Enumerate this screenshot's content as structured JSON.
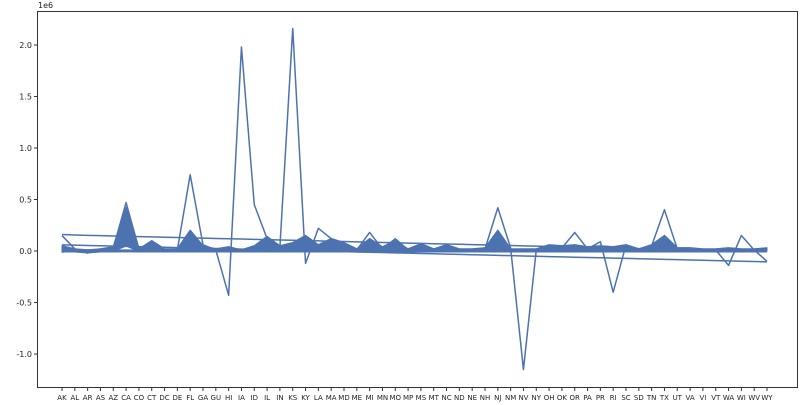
{
  "chart_data": {
    "type": "line",
    "title": "",
    "xlabel": "",
    "ylabel": "",
    "y_offset_label": "1e6",
    "y_multiplier": 1000000,
    "ylim": [
      -1.32,
      2.32
    ],
    "yticks": [
      -1.0,
      -0.5,
      0.0,
      0.5,
      1.0,
      1.5,
      2.0
    ],
    "ytick_labels": [
      "-1.0",
      "-0.5",
      "0.0",
      "0.5",
      "1.0",
      "1.5",
      "2.0"
    ],
    "grid": false,
    "legend": "none",
    "series_color": "#4c72b0",
    "categories": [
      "AK",
      "AL",
      "AR",
      "AS",
      "AZ",
      "CA",
      "CO",
      "CT",
      "DC",
      "DE",
      "FL",
      "GA",
      "GU",
      "HI",
      "IA",
      "ID",
      "IL",
      "IN",
      "KS",
      "KY",
      "LA",
      "MA",
      "MD",
      "ME",
      "MI",
      "MN",
      "MO",
      "MP",
      "MS",
      "MT",
      "NC",
      "ND",
      "NE",
      "NH",
      "NJ",
      "NM",
      "NV",
      "NY",
      "OH",
      "OK",
      "OR",
      "PA",
      "PR",
      "RI",
      "SC",
      "SD",
      "TN",
      "TX",
      "UT",
      "VA",
      "VI",
      "VT",
      "WA",
      "WI",
      "WV",
      "WY"
    ],
    "series": [
      {
        "values": [
          0.15,
          0.02,
          0.01,
          0.02,
          0.03,
          0.47,
          0.02,
          0.09,
          0.01,
          0.01,
          0.74,
          0.06,
          0.01,
          -0.43,
          1.98,
          0.45,
          0.12,
          0.04,
          2.16,
          -0.12,
          0.22,
          0.12,
          0.05,
          0.01,
          0.18,
          0.02,
          0.12,
          0.01,
          0.07,
          0.01,
          0.03,
          0.01,
          0.01,
          0.02,
          0.42,
          0.03,
          -1.15,
          0.01,
          0.05,
          0.03,
          0.18,
          0.02,
          0.09,
          -0.4,
          0.06,
          0.01,
          0.05,
          0.4,
          0.02,
          0.01,
          0.01,
          0.01,
          -0.14,
          0.15,
          0.01,
          -0.1
        ]
      },
      {
        "values": [
          0.05,
          0.02,
          -0.02,
          0.02,
          0.04,
          0.42,
          0.02,
          0.1,
          0.02,
          0.02,
          0.2,
          0.05,
          0.02,
          0.04,
          0.01,
          0.05,
          0.14,
          0.05,
          0.08,
          0.15,
          0.06,
          0.12,
          0.08,
          0.02,
          0.12,
          0.04,
          0.1,
          0.02,
          0.07,
          0.02,
          0.06,
          0.02,
          0.02,
          0.03,
          0.2,
          0.02,
          0.02,
          0.02,
          0.06,
          0.05,
          0.06,
          0.04,
          0.05,
          0.04,
          0.06,
          0.02,
          0.06,
          0.15,
          0.03,
          0.03,
          0.02,
          0.02,
          0.03,
          0.02,
          0.02,
          0.03
        ]
      },
      {
        "values": [
          0.02,
          0.01,
          0.01,
          0.01,
          0.02,
          0.3,
          0.01,
          0.06,
          0.01,
          0.01,
          0.15,
          0.03,
          0.01,
          0.01,
          0.01,
          0.03,
          0.09,
          0.03,
          0.05,
          0.09,
          0.04,
          0.08,
          0.05,
          0.01,
          0.08,
          0.02,
          0.07,
          0.01,
          0.05,
          0.01,
          0.04,
          0.01,
          0.01,
          0.02,
          0.14,
          0.01,
          0.01,
          0.01,
          0.04,
          0.03,
          0.04,
          0.03,
          0.03,
          0.02,
          0.04,
          0.01,
          0.04,
          0.1,
          0.02,
          0.02,
          0.01,
          0.01,
          0.02,
          0.01,
          0.01,
          0.02
        ]
      },
      {
        "values": [
          -0.01,
          0.0,
          0.0,
          0.0,
          0.0,
          0.05,
          0.0,
          0.01,
          0.0,
          0.0,
          0.02,
          0.0,
          0.0,
          0.0,
          0.0,
          0.0,
          0.01,
          0.0,
          0.01,
          0.01,
          0.0,
          0.01,
          0.01,
          0.0,
          0.01,
          0.0,
          0.01,
          0.0,
          0.0,
          0.0,
          0.0,
          0.0,
          0.0,
          0.0,
          0.02,
          0.0,
          0.0,
          0.0,
          0.0,
          0.0,
          0.0,
          0.0,
          0.0,
          0.0,
          0.0,
          0.0,
          0.0,
          0.01,
          0.0,
          0.0,
          0.0,
          0.0,
          0.0,
          0.0,
          0.0,
          0.0
        ]
      },
      {
        "values": [
          0.16,
          0.155,
          0.152,
          0.149,
          0.146,
          0.143,
          0.14,
          0.137,
          0.134,
          0.131,
          0.128,
          0.125,
          0.122,
          0.119,
          0.116,
          0.113,
          0.11,
          0.107,
          0.104,
          0.101,
          0.098,
          0.095,
          0.092,
          0.089,
          0.086,
          0.083,
          0.08,
          0.077,
          0.074,
          0.071,
          0.068,
          0.065,
          0.062,
          0.059,
          0.056,
          0.053,
          0.05,
          0.047,
          0.044,
          0.041,
          0.038,
          0.035,
          0.032,
          0.029,
          0.026,
          0.023,
          0.02,
          0.017,
          0.014,
          0.011,
          0.008,
          0.005,
          0.002,
          -0.001,
          -0.004,
          -0.007
        ]
      },
      {
        "values": [
          0.06,
          0.057,
          0.054,
          0.051,
          0.048,
          0.045,
          0.042,
          0.039,
          0.036,
          0.033,
          0.03,
          0.027,
          0.024,
          0.021,
          0.018,
          0.015,
          0.012,
          0.009,
          0.006,
          0.003,
          0.0,
          -0.003,
          -0.006,
          -0.009,
          -0.012,
          -0.015,
          -0.018,
          -0.021,
          -0.024,
          -0.027,
          -0.03,
          -0.033,
          -0.036,
          -0.039,
          -0.042,
          -0.045,
          -0.048,
          -0.051,
          -0.054,
          -0.057,
          -0.06,
          -0.063,
          -0.066,
          -0.069,
          -0.072,
          -0.075,
          -0.078,
          -0.081,
          -0.084,
          -0.087,
          -0.09,
          -0.093,
          -0.096,
          -0.099,
          -0.102,
          -0.105
        ]
      },
      {
        "values": [
          0.0,
          0.0,
          0.0,
          0.0,
          0.0,
          0.001,
          0.0,
          0.0,
          0.0,
          0.0,
          0.0,
          0.0,
          0.0,
          0.0,
          0.0,
          0.0,
          0.0,
          0.0,
          0.0,
          0.0,
          0.0,
          0.0,
          0.0,
          0.0,
          0.0,
          0.0,
          0.0,
          0.0,
          0.0,
          0.0,
          0.0,
          0.0,
          0.0,
          0.0,
          0.0,
          0.0,
          0.0,
          0.0,
          0.0,
          0.0,
          0.0,
          0.0,
          0.0,
          0.0,
          0.0,
          0.0,
          0.0,
          0.0,
          0.0,
          0.0,
          0.0,
          0.0,
          0.0,
          0.0,
          0.0,
          0.0
        ]
      },
      {
        "values": [
          0.01,
          0.0,
          -0.01,
          0.0,
          0.01,
          0.35,
          0.0,
          0.05,
          0.0,
          0.0,
          0.1,
          0.02,
          0.0,
          0.0,
          0.0,
          0.02,
          0.07,
          0.02,
          0.03,
          0.06,
          0.02,
          0.06,
          0.03,
          0.0,
          0.06,
          0.01,
          0.05,
          0.0,
          0.03,
          0.0,
          0.02,
          0.0,
          0.0,
          0.01,
          0.12,
          0.0,
          0.0,
          0.0,
          0.03,
          0.02,
          0.03,
          0.02,
          0.02,
          0.01,
          0.03,
          0.0,
          0.03,
          0.08,
          0.01,
          0.01,
          0.0,
          0.0,
          0.01,
          0.0,
          0.0,
          0.01
        ]
      }
    ]
  }
}
